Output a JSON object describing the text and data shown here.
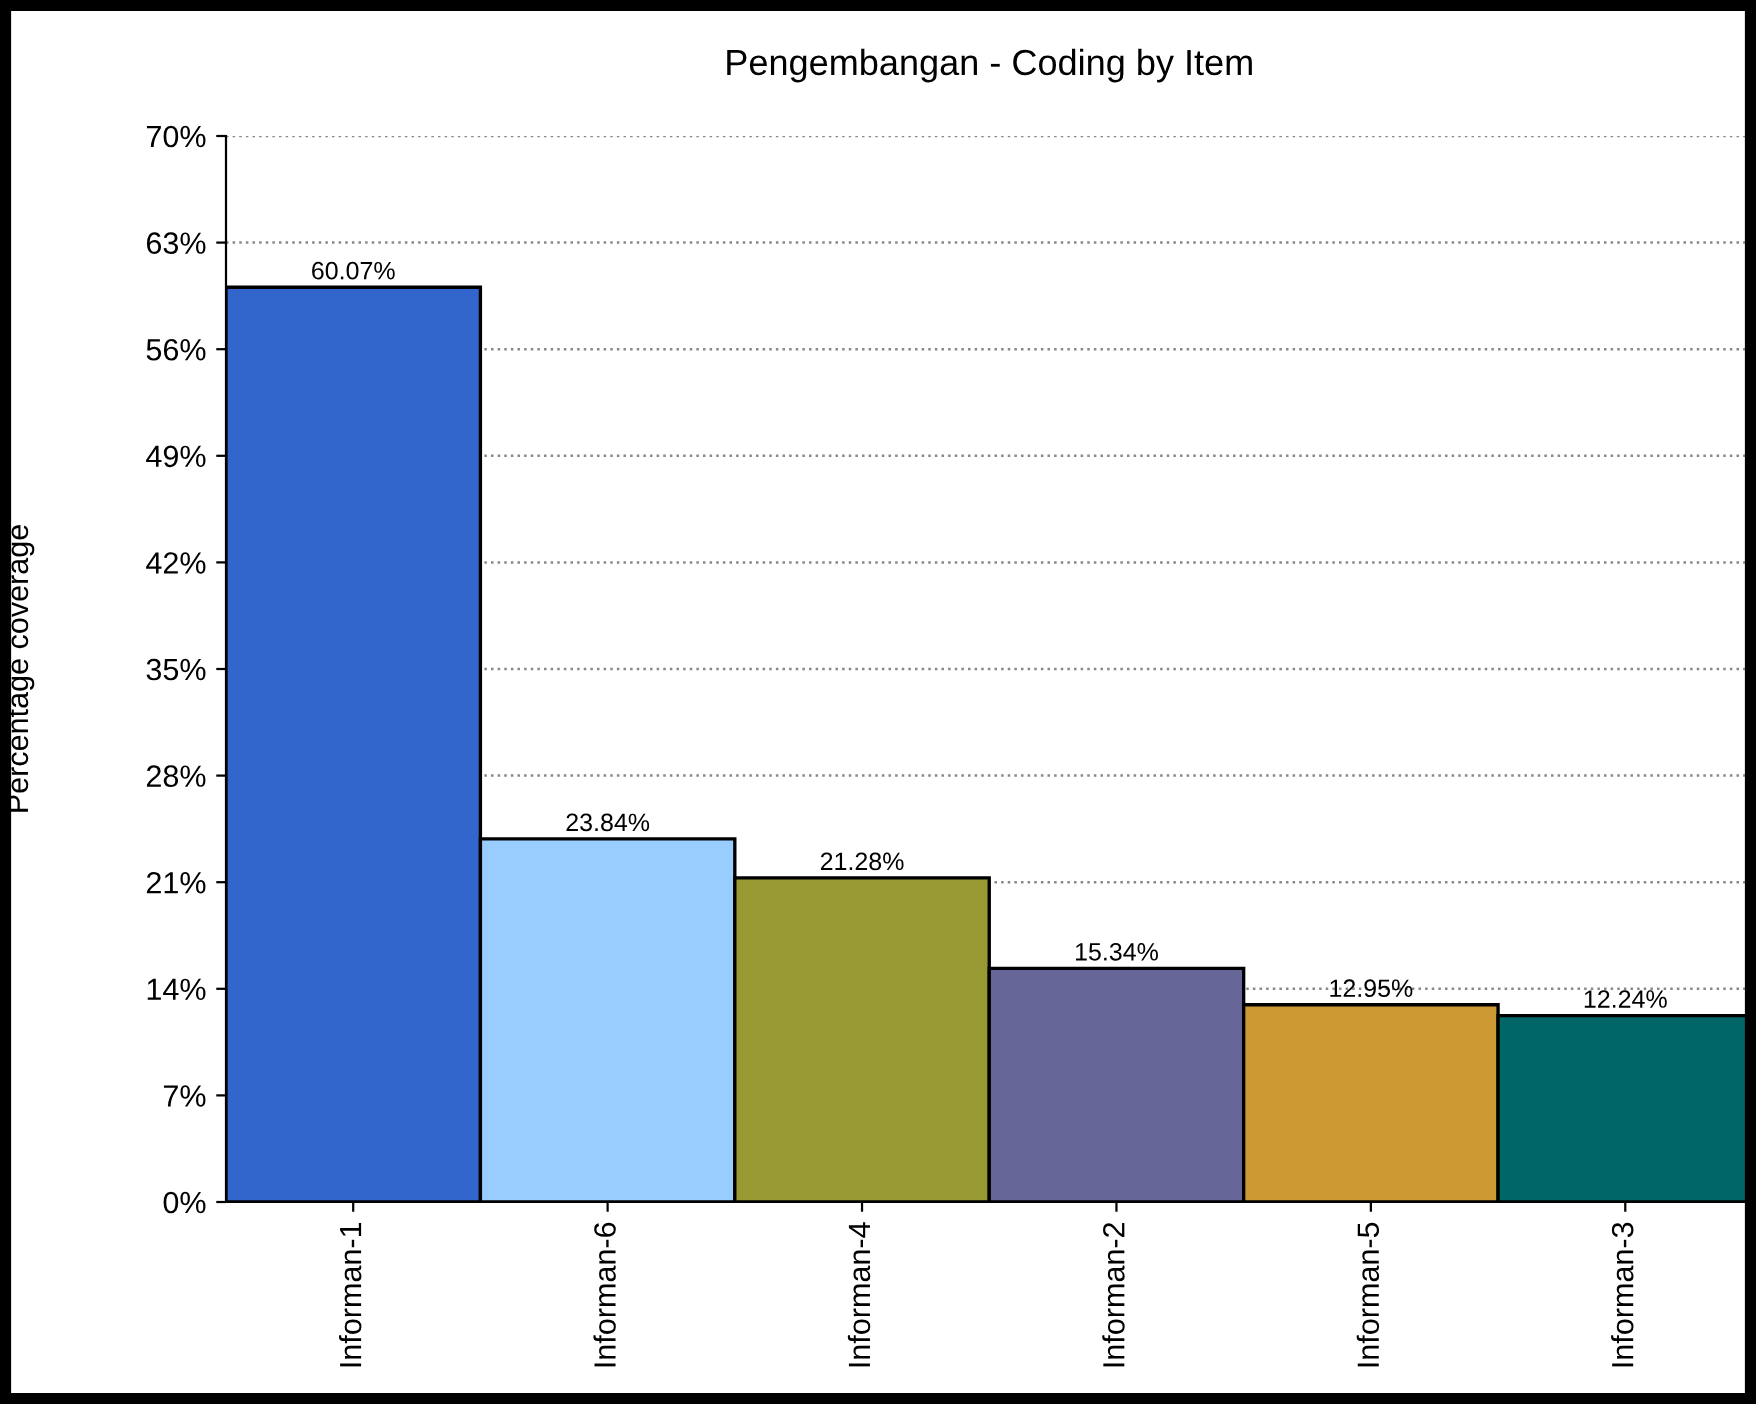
{
  "chart_data": {
    "type": "bar",
    "title": "Pengembangan - Coding by Item",
    "ylabel": "Percentage coverage",
    "categories": [
      "Informan-1",
      "Informan-6",
      "Informan-4",
      "Informan-2",
      "Informan-5",
      "Informan-3"
    ],
    "values": [
      60.07,
      23.84,
      21.28,
      15.34,
      12.95,
      12.24
    ],
    "colors": [
      "#3366cc",
      "#99ccff",
      "#999933",
      "#666699",
      "#cc9933",
      "#006666"
    ],
    "value_labels": [
      "60.07%",
      "23.84%",
      "21.28%",
      "15.34%",
      "12.95%",
      "12.24%"
    ],
    "ylim": [
      0,
      70
    ],
    "yticks": [
      {
        "value": 0,
        "label": "0%"
      },
      {
        "value": 7,
        "label": "7%"
      },
      {
        "value": 14,
        "label": "14%"
      },
      {
        "value": 21,
        "label": "21%"
      },
      {
        "value": 28,
        "label": "28%"
      },
      {
        "value": 35,
        "label": "35%"
      },
      {
        "value": 42,
        "label": "42%"
      },
      {
        "value": 49,
        "label": "49%"
      },
      {
        "value": 56,
        "label": "56%"
      },
      {
        "value": 63,
        "label": "63%"
      },
      {
        "value": 70,
        "label": "70%"
      }
    ],
    "grid": "y",
    "legend": false
  }
}
